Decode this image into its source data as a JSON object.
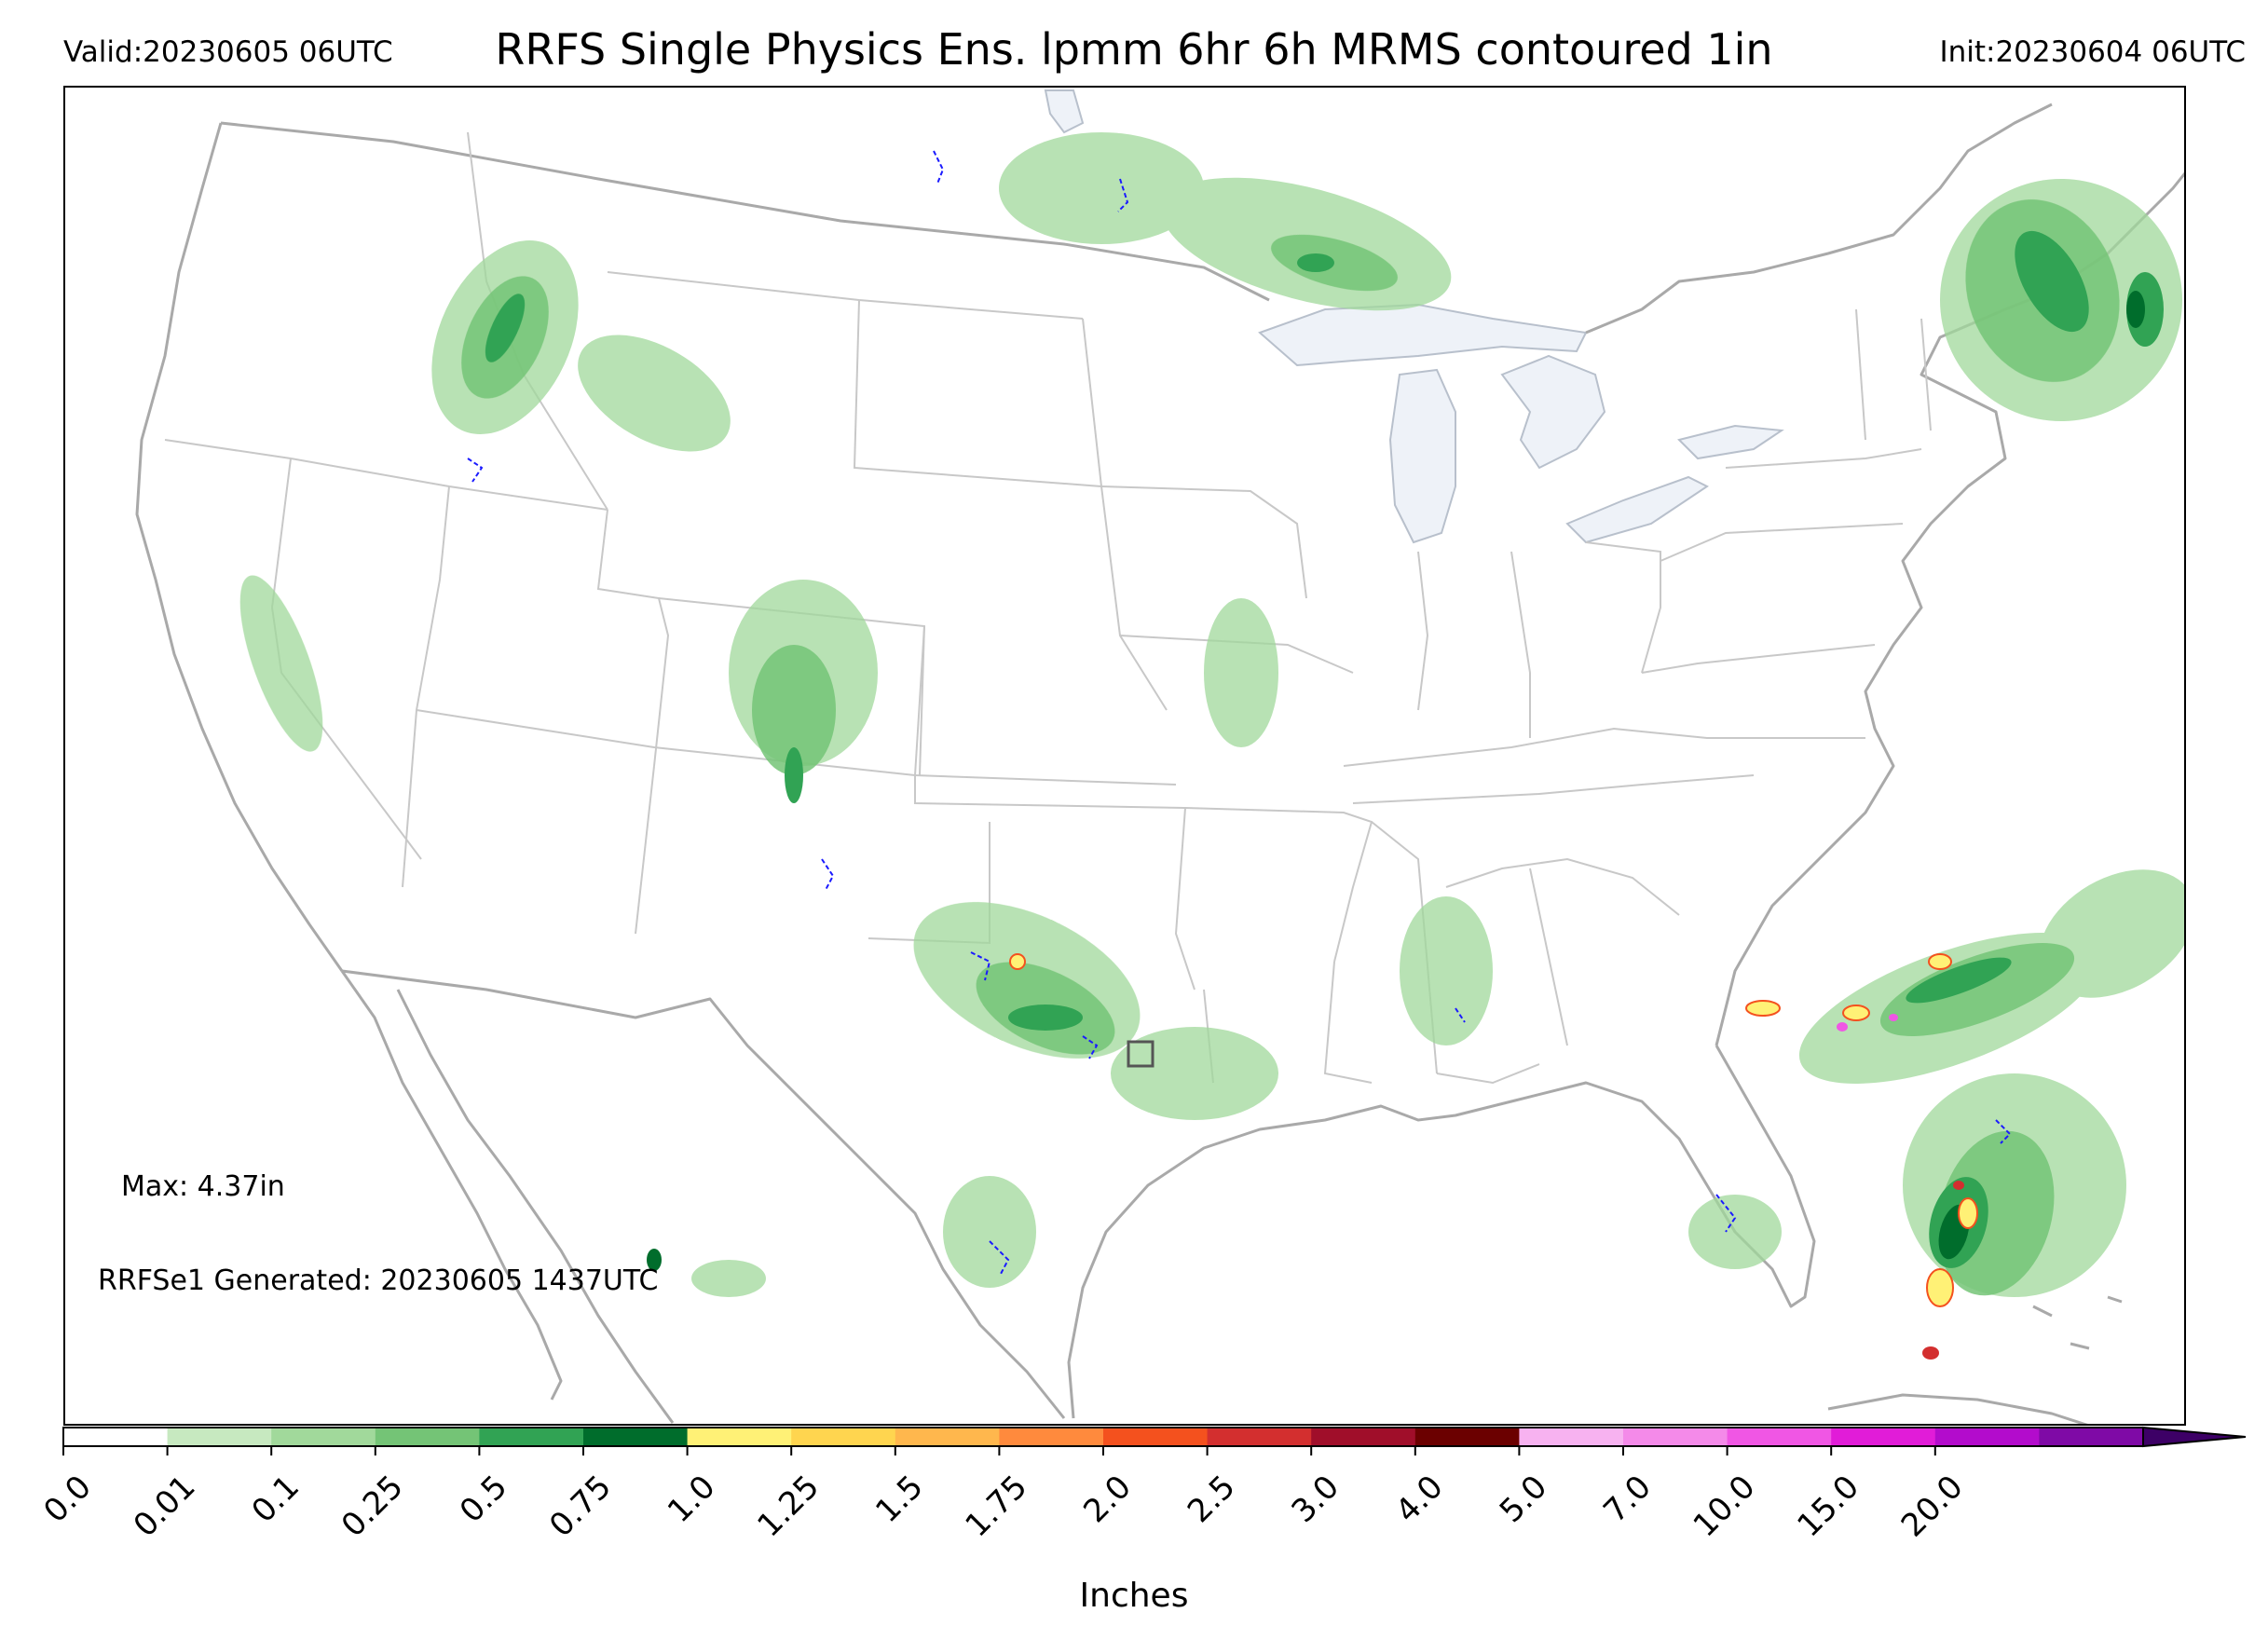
{
  "header": {
    "valid": "Valid:20230605 06UTC",
    "title": "RRFS Single Physics Ens. lpmm 6hr 6h MRMS contoured 1in",
    "init": "Init:20230604 06UTC"
  },
  "notes": {
    "max": "Max: 4.37in",
    "generated": "RRFSe1 Generated: 20230605 1437UTC"
  },
  "colorbar": {
    "label": "Inches",
    "ticks": [
      "0.0",
      "0.01",
      "0.1",
      "0.25",
      "0.5",
      "0.75",
      "1.0",
      "1.25",
      "1.5",
      "1.75",
      "2.0",
      "2.5",
      "3.0",
      "4.0",
      "5.0",
      "7.0",
      "10.0",
      "15.0",
      "20.0"
    ],
    "colors": [
      "#ffffff",
      "#c7e9c0",
      "#a1d99b",
      "#74c476",
      "#31a354",
      "#006d2c",
      "#fff176",
      "#ffd54f",
      "#ffb74d",
      "#ff8a3d",
      "#f4511e",
      "#d32f2f",
      "#a00e2a",
      "#6b0000",
      "#f7b2f0",
      "#f48ae9",
      "#f056e4",
      "#e11cd8",
      "#b30ccc",
      "#7f0aa6"
    ],
    "extend_color": "#3d0066"
  },
  "map": {
    "colors": {
      "land_outline": "#a9a9a9",
      "state_lines": "#c8c8c8",
      "lakes": "#eef2f8",
      "mrms_contour": "#1a1aff",
      "light_green": "#a1d99b",
      "mid_green": "#74c476",
      "dark_green": "#31a354",
      "deep_green": "#006d2c",
      "yellow": "#fff176",
      "red": "#d32f2f",
      "magenta": "#f056e4"
    }
  }
}
